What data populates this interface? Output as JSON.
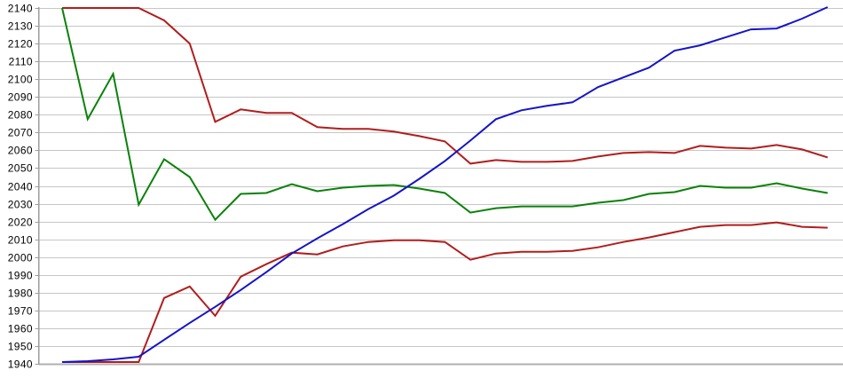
{
  "chart_data": {
    "type": "line",
    "title": "",
    "xlabel": "",
    "ylabel": "",
    "legend": "none",
    "grid": "horizontal-only",
    "background": "#ffffff",
    "y_axis": {
      "min": 1940,
      "max": 2140,
      "step": 10,
      "tick_labels": [
        "2140",
        "2130",
        "2120",
        "2110",
        "2100",
        "2090",
        "2080",
        "2070",
        "2060",
        "2050",
        "2040",
        "2030",
        "2020",
        "2010",
        "2000",
        "1990",
        "1980",
        "1970",
        "1960",
        "1950",
        "1940"
      ]
    },
    "x_axis": {
      "tick_labels_visible": false,
      "point_count": 31
    },
    "colors": {
      "gridline": "#c6c6c6",
      "axis_line": "#9e9e9e",
      "bottom_axis_line": "#b0b0b0",
      "tick_label": "#000000",
      "red": "#b21d1d",
      "green": "#0a820a",
      "blue": "#1414c8"
    },
    "series": [
      {
        "name": "red-upper-line",
        "color_key": "red",
        "values": [
          2140,
          2140,
          2140,
          2140,
          2133,
          2120,
          2076,
          2083,
          2081,
          2081,
          2073,
          2072,
          2072,
          2070.5,
          2068,
          2065,
          2052.5,
          2054.5,
          2053.5,
          2053.5,
          2054,
          2056.5,
          2058.5,
          2059,
          2058.5,
          2062.5,
          2061.5,
          2061,
          2063,
          2060.5,
          2056
        ]
      },
      {
        "name": "green-line",
        "color_key": "green",
        "values": [
          2140,
          2077.5,
          2103,
          2029.5,
          2055,
          2045,
          2021,
          2035.5,
          2036,
          2041,
          2037,
          2039,
          2040,
          2040.5,
          2038.5,
          2036,
          2025,
          2027.5,
          2028.5,
          2028.5,
          2028.5,
          2030.5,
          2032,
          2035.5,
          2036.5,
          2040,
          2039,
          2039,
          2041.5,
          2038.5,
          2036
        ]
      },
      {
        "name": "red-lower-line",
        "color_key": "red",
        "values": [
          1941,
          1941,
          1941,
          1941,
          1977,
          1983.5,
          1967,
          1989,
          1996,
          2002.5,
          2001.5,
          2006,
          2008.5,
          2009.5,
          2009.5,
          2008.5,
          1998.5,
          2002,
          2003,
          2003,
          2003.5,
          2005.5,
          2008.5,
          2011,
          2014,
          2017,
          2018,
          2018,
          2019.5,
          2017,
          2016.5
        ]
      },
      {
        "name": "blue-line",
        "color_key": "blue",
        "values": [
          1941,
          1941.5,
          1942.5,
          1944,
          1953.5,
          1963,
          1972,
          1981.5,
          1991.5,
          2002,
          2010.5,
          2018.5,
          2027,
          2034.5,
          2044,
          2054,
          2065.5,
          2077.5,
          2082.5,
          2085,
          2087,
          2095.5,
          2101,
          2106.5,
          2116,
          2119,
          2123.5,
          2128,
          2128.5,
          2134,
          2140.5
        ]
      }
    ]
  }
}
